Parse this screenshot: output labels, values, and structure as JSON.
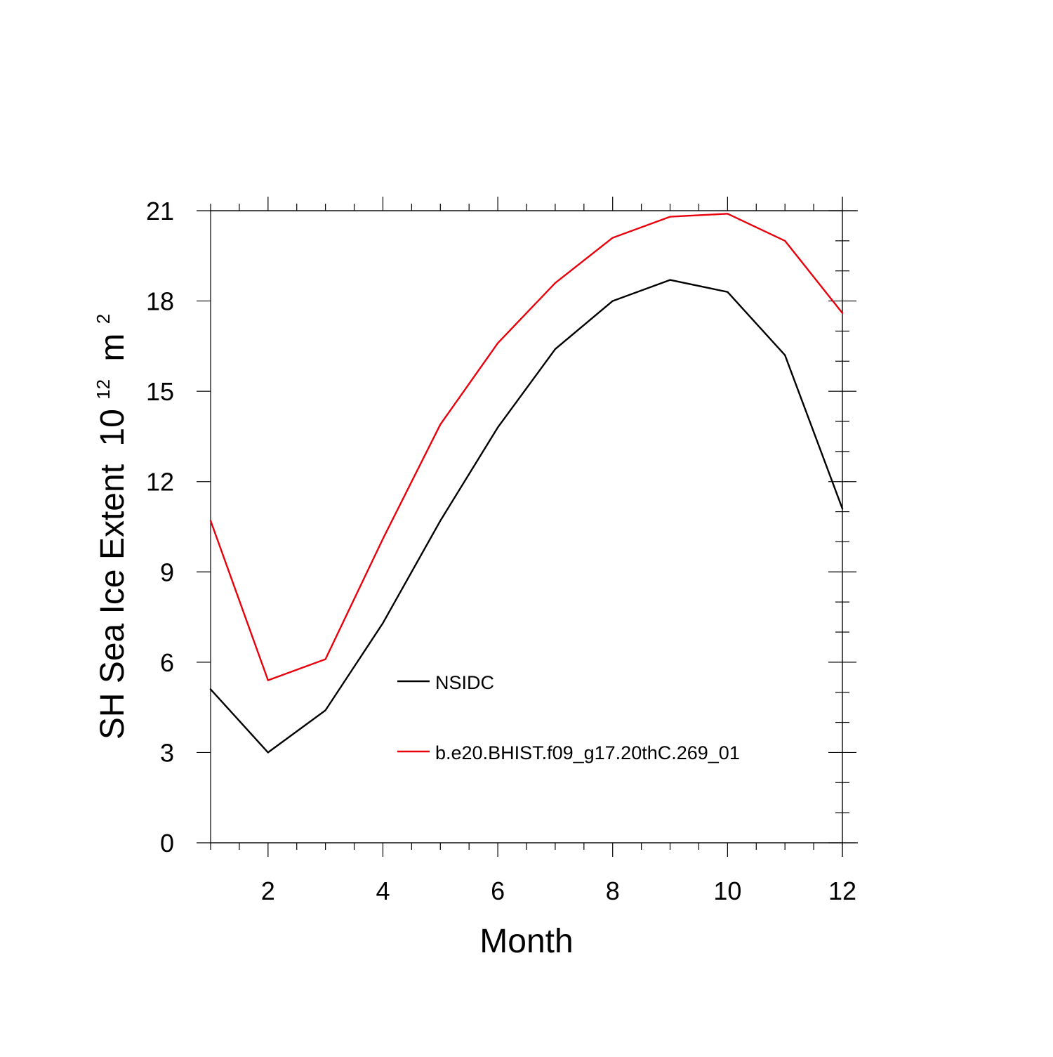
{
  "chart_data": {
    "type": "line",
    "title": "",
    "xlabel": "Month",
    "ylabel": "SH Sea Ice Extent",
    "ylabel_unit_base": "10",
    "ylabel_unit_exp": "12",
    "ylabel_unit_sym": "m",
    "ylabel_unit_sym_exp": "2",
    "xlim": [
      1,
      12
    ],
    "ylim": [
      0,
      21
    ],
    "x_ticks": [
      2,
      4,
      6,
      8,
      10,
      12
    ],
    "y_ticks": [
      0,
      3,
      6,
      9,
      12,
      15,
      18,
      21
    ],
    "x_minor_step": 0.5,
    "y_minor_step": 1,
    "grid": false,
    "legend_position": "center",
    "x": [
      1,
      2,
      3,
      4,
      5,
      6,
      7,
      8,
      9,
      10,
      11,
      12
    ],
    "series": [
      {
        "name": "NSIDC",
        "color": "#000000",
        "values": [
          5.1,
          3.0,
          4.4,
          7.3,
          10.7,
          13.8,
          16.4,
          18.0,
          18.7,
          18.3,
          16.2,
          11.1
        ]
      },
      {
        "name": "b.e20.BHIST.f09_g17.20thC.269_01",
        "color": "#e8000b",
        "values": [
          10.7,
          5.4,
          6.1,
          10.1,
          13.9,
          16.6,
          18.6,
          20.1,
          20.8,
          20.9,
          20.0,
          17.6
        ]
      }
    ]
  }
}
